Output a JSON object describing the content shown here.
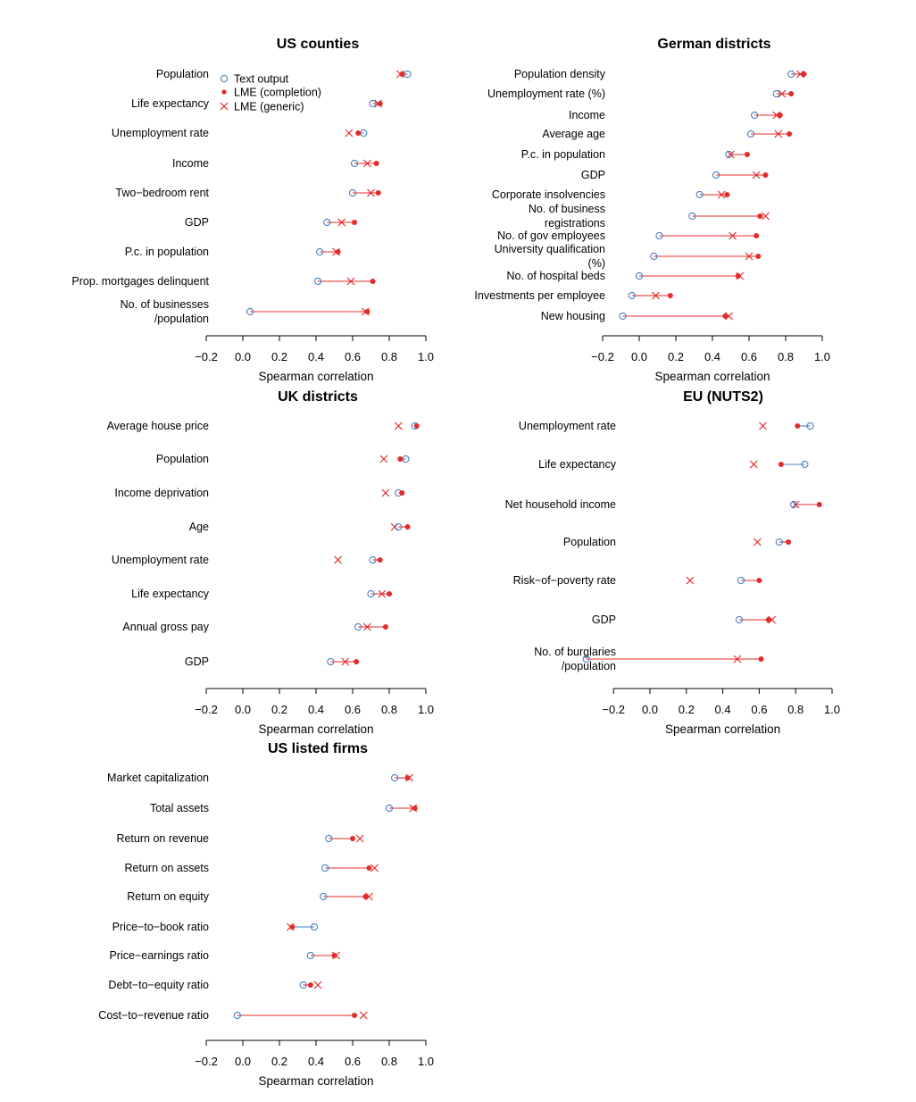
{
  "colors": {
    "text_output": "#4a7fc1",
    "lme": "#e32b2b",
    "axis": "#000000"
  },
  "legend": {
    "entries": [
      {
        "label": "Text output",
        "marker": "open-circle"
      },
      {
        "label": "LME (completion)",
        "marker": "dot"
      },
      {
        "label": "LME (generic)",
        "marker": "cross"
      }
    ]
  },
  "chart_data": [
    {
      "type": "dot-plot",
      "title": "US counties",
      "xlabel": "Spearman correlation",
      "xlim": [
        -0.2,
        1.0
      ],
      "xticks": [
        "−0.2",
        "0.0",
        "0.2",
        "0.4",
        "0.6",
        "0.8",
        "1.0"
      ],
      "rows": [
        {
          "label": [
            "Population"
          ],
          "text": 0.9,
          "completion": 0.87,
          "generic": 0.86
        },
        {
          "label": [
            "Life expectancy"
          ],
          "text": 0.71,
          "completion": 0.75,
          "generic": 0.74
        },
        {
          "label": [
            "Unemployment rate"
          ],
          "text": 0.66,
          "completion": 0.63,
          "generic": 0.58
        },
        {
          "label": [
            "Income"
          ],
          "text": 0.61,
          "completion": 0.73,
          "generic": 0.68
        },
        {
          "label": [
            "Two−bedroom rent"
          ],
          "text": 0.6,
          "completion": 0.74,
          "generic": 0.7
        },
        {
          "label": [
            "GDP"
          ],
          "text": 0.46,
          "completion": 0.61,
          "generic": 0.54
        },
        {
          "label": [
            "P.c. in population"
          ],
          "text": 0.42,
          "completion": 0.52,
          "generic": 0.51
        },
        {
          "label": [
            "Prop. mortgages delinquent"
          ],
          "text": 0.41,
          "completion": 0.71,
          "generic": 0.59
        },
        {
          "label": [
            "No. of businesses",
            "/population"
          ],
          "text": 0.04,
          "completion": 0.68,
          "generic": 0.67
        }
      ]
    },
    {
      "type": "dot-plot",
      "title": "German districts",
      "xlabel": "Spearman correlation",
      "xlim": [
        -0.2,
        1.0
      ],
      "xticks": [
        "−0.2",
        "0.0",
        "0.2",
        "0.4",
        "0.6",
        "0.8",
        "1.0"
      ],
      "rows": [
        {
          "label": [
            "Population density"
          ],
          "text": 0.83,
          "completion": 0.9,
          "generic": 0.88
        },
        {
          "label": [
            "Unemployment rate (%)"
          ],
          "text": 0.75,
          "completion": 0.83,
          "generic": 0.78
        },
        {
          "label": [
            "Income"
          ],
          "text": 0.63,
          "completion": 0.77,
          "generic": 0.75
        },
        {
          "label": [
            "Average age"
          ],
          "text": 0.61,
          "completion": 0.82,
          "generic": 0.76
        },
        {
          "label": [
            "P.c. in population"
          ],
          "text": 0.49,
          "completion": 0.59,
          "generic": 0.5
        },
        {
          "label": [
            "GDP"
          ],
          "text": 0.42,
          "completion": 0.69,
          "generic": 0.64
        },
        {
          "label": [
            "Corporate insolvencies"
          ],
          "text": 0.33,
          "completion": 0.48,
          "generic": 0.45
        },
        {
          "label": [
            "No. of business",
            "registrations"
          ],
          "text": 0.29,
          "completion": 0.66,
          "generic": 0.69
        },
        {
          "label": [
            "No. of gov employees"
          ],
          "text": 0.11,
          "completion": 0.64,
          "generic": 0.51
        },
        {
          "label": [
            "University qualification",
            "(%)"
          ],
          "text": 0.08,
          "completion": 0.65,
          "generic": 0.6
        },
        {
          "label": [
            "No. of hospital beds"
          ],
          "text": 0.0,
          "completion": 0.54,
          "generic": 0.55
        },
        {
          "label": [
            "Investments per employee"
          ],
          "text": -0.04,
          "completion": 0.17,
          "generic": 0.09
        },
        {
          "label": [
            "New housing"
          ],
          "text": -0.09,
          "completion": 0.47,
          "generic": 0.49
        }
      ]
    },
    {
      "type": "dot-plot",
      "title": "UK districts",
      "xlabel": "Spearman correlation",
      "xlim": [
        -0.2,
        1.0
      ],
      "xticks": [
        "−0.2",
        "0.0",
        "0.2",
        "0.4",
        "0.6",
        "0.8",
        "1.0"
      ],
      "rows": [
        {
          "label": [
            "Average house price"
          ],
          "text": 0.94,
          "completion": 0.95,
          "generic": 0.85
        },
        {
          "label": [
            "Population"
          ],
          "text": 0.89,
          "completion": 0.86,
          "generic": 0.77
        },
        {
          "label": [
            "Income deprivation"
          ],
          "text": 0.85,
          "completion": 0.87,
          "generic": 0.78
        },
        {
          "label": [
            "Age"
          ],
          "text": 0.85,
          "completion": 0.9,
          "generic": 0.83
        },
        {
          "label": [
            "Unemployment rate"
          ],
          "text": 0.71,
          "completion": 0.75,
          "generic": 0.52
        },
        {
          "label": [
            "Life expectancy"
          ],
          "text": 0.7,
          "completion": 0.8,
          "generic": 0.76
        },
        {
          "label": [
            "Annual gross pay"
          ],
          "text": 0.63,
          "completion": 0.78,
          "generic": 0.68
        },
        {
          "label": [
            "GDP"
          ],
          "text": 0.48,
          "completion": 0.62,
          "generic": 0.56
        }
      ]
    },
    {
      "type": "dot-plot",
      "title": "EU (NUTS2)",
      "xlabel": "Spearman correlation",
      "xlim": [
        -0.2,
        1.0
      ],
      "xticks": [
        "−0.2",
        "0.0",
        "0.2",
        "0.4",
        "0.6",
        "0.8",
        "1.0"
      ],
      "rows": [
        {
          "label": [
            "Unemployment rate"
          ],
          "text": 0.88,
          "completion": 0.81,
          "generic": 0.62
        },
        {
          "label": [
            "Life expectancy"
          ],
          "text": 0.85,
          "completion": 0.72,
          "generic": 0.57
        },
        {
          "label": [
            "Net household income"
          ],
          "text": 0.79,
          "completion": 0.93,
          "generic": 0.8
        },
        {
          "label": [
            "Population"
          ],
          "text": 0.71,
          "completion": 0.76,
          "generic": 0.59
        },
        {
          "label": [
            "Risk−of−poverty rate"
          ],
          "text": 0.5,
          "completion": 0.6,
          "generic": 0.22
        },
        {
          "label": [
            "GDP"
          ],
          "text": 0.49,
          "completion": 0.65,
          "generic": 0.67
        },
        {
          "label": [
            "No. of burglaries",
            "/population"
          ],
          "text": -0.35,
          "completion": 0.61,
          "generic": 0.48
        }
      ]
    },
    {
      "type": "dot-plot",
      "title": "US listed firms",
      "xlabel": "Spearman correlation",
      "xlim": [
        -0.2,
        1.0
      ],
      "xticks": [
        "−0.2",
        "0.0",
        "0.2",
        "0.4",
        "0.6",
        "0.8",
        "1.0"
      ],
      "rows": [
        {
          "label": [
            "Market capitalization"
          ],
          "text": 0.83,
          "completion": 0.9,
          "generic": 0.91
        },
        {
          "label": [
            "Total assets"
          ],
          "text": 0.8,
          "completion": 0.94,
          "generic": 0.93
        },
        {
          "label": [
            "Return on revenue"
          ],
          "text": 0.47,
          "completion": 0.6,
          "generic": 0.64
        },
        {
          "label": [
            "Return on assets"
          ],
          "text": 0.45,
          "completion": 0.69,
          "generic": 0.72
        },
        {
          "label": [
            "Return on equity"
          ],
          "text": 0.44,
          "completion": 0.67,
          "generic": 0.69
        },
        {
          "label": [
            "Price−to−book ratio"
          ],
          "text": 0.39,
          "completion": 0.27,
          "generic": 0.26
        },
        {
          "label": [
            "Price−earnings ratio"
          ],
          "text": 0.37,
          "completion": 0.5,
          "generic": 0.51
        },
        {
          "label": [
            "Debt−to−equity ratio"
          ],
          "text": 0.33,
          "completion": 0.37,
          "generic": 0.41
        },
        {
          "label": [
            "Cost−to−revenue ratio"
          ],
          "text": -0.03,
          "completion": 0.61,
          "generic": 0.66
        }
      ]
    }
  ]
}
